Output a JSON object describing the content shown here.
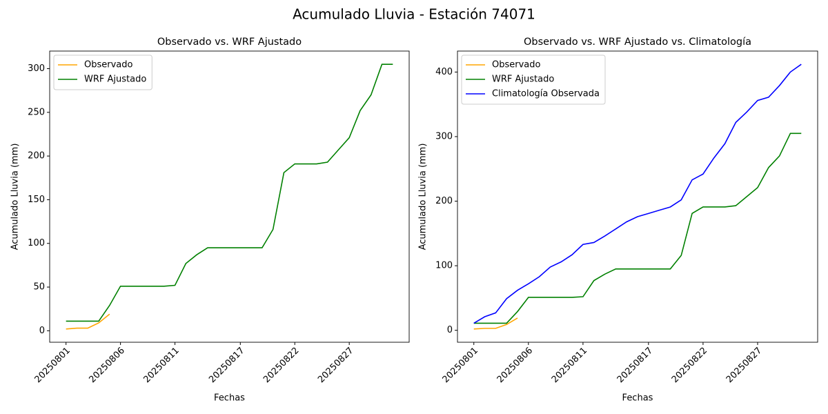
{
  "title": "Acumulado Lluvia - Estación 74071",
  "chart_data": [
    {
      "type": "line",
      "title": "Observado vs. WRF Ajustado",
      "xlabel": "Fechas",
      "ylabel": "Acumulado Lluvia (mm)",
      "x": [
        "20250801",
        "20250802",
        "20250803",
        "20250804",
        "20250805",
        "20250806",
        "20250807",
        "20250808",
        "20250809",
        "20250810",
        "20250811",
        "20250812",
        "20250813",
        "20250814",
        "20250815",
        "20250816",
        "20250817",
        "20250818",
        "20250819",
        "20250820",
        "20250821",
        "20250822",
        "20250823",
        "20250824",
        "20250825",
        "20250826",
        "20250827",
        "20250828",
        "20250829",
        "20250830",
        "20250831"
      ],
      "xticks": [
        "20250801",
        "20250806",
        "20250811",
        "20250817",
        "20250822",
        "20250827"
      ],
      "ylim": [
        -13.15,
        320.15
      ],
      "yticks": [
        0,
        50,
        100,
        150,
        200,
        250,
        300
      ],
      "legend": "upper left",
      "series": [
        {
          "name": "Observado",
          "color": "#ffa500",
          "values": [
            2,
            3,
            3,
            9,
            19,
            null,
            null,
            null,
            null,
            null,
            null,
            null,
            null,
            null,
            null,
            null,
            null,
            null,
            null,
            null,
            null,
            null,
            null,
            null,
            null,
            null,
            null,
            null,
            null,
            null,
            null
          ]
        },
        {
          "name": "WRF Ajustado",
          "color": "#008000",
          "values": [
            11,
            11,
            11,
            11,
            29,
            51,
            51,
            51,
            51,
            51,
            52,
            77,
            87,
            95,
            95,
            95,
            95,
            95,
            95,
            116,
            181,
            191,
            191,
            191,
            193,
            207,
            221,
            252,
            270,
            305,
            305
          ]
        }
      ]
    },
    {
      "type": "line",
      "title": "Observado vs. WRF Ajustado vs. Climatología",
      "xlabel": "Fechas",
      "ylabel": "Acumulado Lluvia (mm)",
      "x": [
        "20250801",
        "20250802",
        "20250803",
        "20250804",
        "20250805",
        "20250806",
        "20250807",
        "20250808",
        "20250809",
        "20250810",
        "20250811",
        "20250812",
        "20250813",
        "20250814",
        "20250815",
        "20250816",
        "20250817",
        "20250818",
        "20250819",
        "20250820",
        "20250821",
        "20250822",
        "20250823",
        "20250824",
        "20250825",
        "20250826",
        "20250827",
        "20250828",
        "20250829",
        "20250830",
        "20250831"
      ],
      "xticks": [
        "20250801",
        "20250806",
        "20250811",
        "20250817",
        "20250822",
        "20250827"
      ],
      "ylim": [
        -18.5,
        432.5
      ],
      "yticks": [
        0,
        100,
        200,
        300,
        400
      ],
      "legend": "upper left",
      "series": [
        {
          "name": "Observado",
          "color": "#ffa500",
          "values": [
            2,
            3,
            3,
            9,
            19,
            null,
            null,
            null,
            null,
            null,
            null,
            null,
            null,
            null,
            null,
            null,
            null,
            null,
            null,
            null,
            null,
            null,
            null,
            null,
            null,
            null,
            null,
            null,
            null,
            null,
            null
          ]
        },
        {
          "name": "WRF Ajustado",
          "color": "#008000",
          "values": [
            11,
            11,
            11,
            11,
            29,
            51,
            51,
            51,
            51,
            51,
            52,
            77,
            87,
            95,
            95,
            95,
            95,
            95,
            95,
            116,
            181,
            191,
            191,
            191,
            193,
            207,
            221,
            252,
            270,
            305,
            305
          ]
        },
        {
          "name": "Climatología Observada",
          "color": "#0000ff",
          "values": [
            11,
            21,
            27,
            49,
            62,
            72,
            83,
            98,
            106,
            117,
            133,
            136,
            146,
            157,
            168,
            176,
            181,
            186,
            191,
            202,
            233,
            242,
            267,
            289,
            322,
            338,
            356,
            361,
            379,
            400,
            412
          ]
        }
      ]
    }
  ]
}
